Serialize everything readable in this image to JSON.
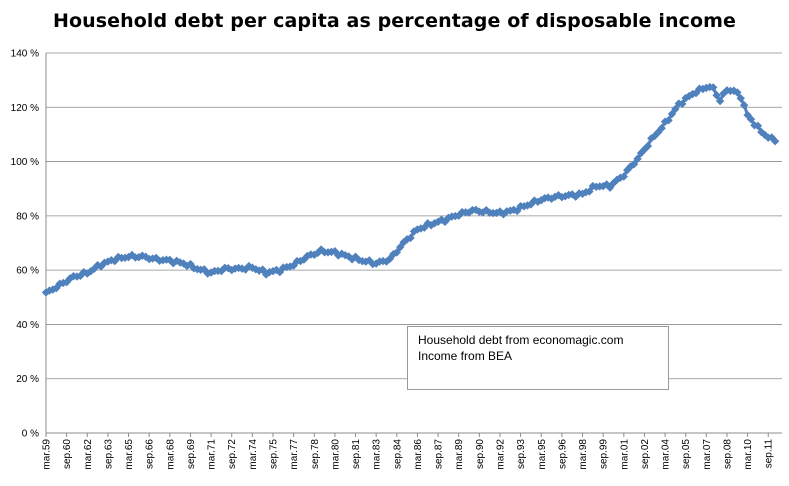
{
  "chart_data": {
    "type": "line",
    "title": "Household debt per capita as percentage of disposable income",
    "xlabel": "",
    "ylabel": "",
    "ylim": [
      0,
      140
    ],
    "y_ticks": [
      "0 %",
      "20 %",
      "40 %",
      "60 %",
      "80 %",
      "100 %",
      "120 %",
      "140 %"
    ],
    "x_ticks": [
      "mar.59",
      "sep.60",
      "mar.62",
      "sep.63",
      "mar.65",
      "sep.66",
      "mar.68",
      "sep.69",
      "mar.71",
      "sep.72",
      "mar.74",
      "sep.75",
      "mar.77",
      "sep.78",
      "mar.80",
      "sep.81",
      "mar.83",
      "sep.84",
      "mar.86",
      "sep.87",
      "mar.89",
      "sep.90",
      "mar.92",
      "sep.93",
      "mar.95",
      "sep.96",
      "mar.98",
      "sep.99",
      "mar.01",
      "sep.02",
      "mar.04",
      "sep.05",
      "mar.07",
      "sep.08",
      "mar.10",
      "sep.11"
    ],
    "grid": "horizontal",
    "series_color": "#4f81bd",
    "marker": "diamond",
    "series": [
      {
        "x": [
          1959.0,
          1960.0,
          1961.0,
          1962.0,
          1963.0,
          1964.0,
          1965.0,
          1966.0,
          1967.0,
          1968.0,
          1969.0,
          1970.0,
          1971.0,
          1972.0,
          1973.0,
          1974.0,
          1975.0,
          1976.0,
          1977.0,
          1978.0,
          1979.0,
          1980.0,
          1981.0,
          1982.0,
          1983.0,
          1984.0,
          1985.0,
          1986.0,
          1987.0,
          1988.0,
          1989.0,
          1990.0,
          1991.0,
          1992.0,
          1993.0,
          1994.0,
          1995.0,
          1996.0,
          1997.0,
          1998.0,
          1999.0,
          2000.0,
          2001.0,
          2002.0,
          2003.0,
          2004.0,
          2005.0,
          2006.0,
          2007.0,
          2007.5,
          2008.0,
          2008.5,
          2009.0,
          2009.5,
          2010.0,
          2011.0,
          2011.5,
          2012.0
        ],
        "values": [
          51.5,
          54.5,
          57.5,
          59,
          62,
          64,
          65,
          65,
          64,
          63.5,
          62.5,
          60.5,
          59,
          60.5,
          60.5,
          61,
          59,
          60,
          62,
          65,
          67,
          66.5,
          65,
          63.5,
          62.5,
          64,
          70,
          75,
          77,
          78.5,
          80.5,
          82,
          81.5,
          81,
          82,
          84,
          86,
          87,
          87.5,
          88,
          91,
          91,
          95,
          101,
          108,
          114,
          121,
          125,
          127.5,
          127,
          122.5,
          126.5,
          126,
          124,
          117,
          111,
          109,
          107.5
        ]
      }
    ]
  },
  "annotation": {
    "line1": "Household debt from economagic.com",
    "line2": "Income from  BEA"
  }
}
